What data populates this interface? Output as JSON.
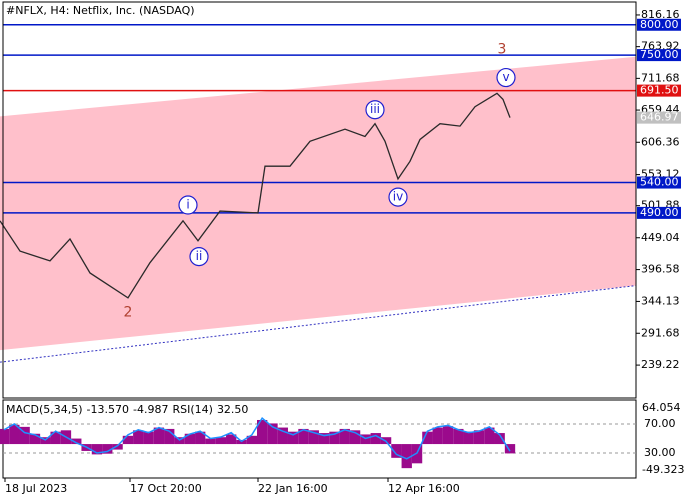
{
  "chart_data": {
    "type": "line",
    "title": "#NFLX, H4:  Netflix, Inc. (NASDAQ)",
    "x": [
      0,
      5,
      12.5,
      17.5,
      22.5,
      32,
      37.5,
      45.75,
      49.5,
      55,
      64.5,
      66.25,
      72.5,
      77.5,
      86.25,
      91.25,
      93.75,
      96.25,
      99.5,
      102.5,
      105,
      110,
      115,
      118.75,
      124.25,
      125.75,
      127.5
    ],
    "series": [
      {
        "name": "NFLX",
        "color": "#2a2a2a",
        "values": [
          476.9,
          427,
          411,
          447,
          391,
          350,
          408,
          477,
          444,
          493,
          490,
          567,
          567,
          608,
          628,
          616,
          637,
          608,
          546,
          575,
          611,
          637,
          633,
          665,
          687,
          677,
          646.97
        ]
      }
    ],
    "xlim": [
      0,
      159
    ],
    "xticks": [
      {
        "value": 1.25,
        "label": "18 Jul 2023"
      },
      {
        "value": 32.5,
        "label": "17 Oct 20:00"
      },
      {
        "value": 64.5,
        "label": "22 Jan 16:00"
      },
      {
        "value": 97,
        "label": "12 Apr 16:00"
      }
    ],
    "ylim": [
      185,
      837.5
    ],
    "yticks": [
      816.16,
      763.92,
      711.68,
      659.44,
      606.36,
      553.12,
      501.88,
      449.04,
      396.58,
      344.13,
      291.68,
      239.22
    ],
    "levels": [
      {
        "value": 800,
        "label": "800.00",
        "color": "#0018c8"
      },
      {
        "value": 750,
        "label": "750.00",
        "color": "#0018c8"
      },
      {
        "value": 691.5,
        "label": "691.50",
        "color": "#e01010"
      },
      {
        "value": 646.97,
        "label": "646.97",
        "color": "#c0c0c0"
      },
      {
        "value": 540,
        "label": "540.00",
        "color": "#0018c8"
      },
      {
        "value": 490,
        "label": "490.00",
        "color": "#0018c8"
      }
    ],
    "channel": {
      "x": [
        0,
        159
      ],
      "upper": [
        649,
        747.3
      ],
      "lower": [
        263.8,
        370.3
      ],
      "color": "#ffc0cb"
    },
    "waves": [
      {
        "label": "2",
        "x": 32,
        "y": 326,
        "circled": false
      },
      {
        "label": "i",
        "x": 47,
        "y": 503,
        "circled": true
      },
      {
        "label": "ii",
        "x": 49.75,
        "y": 418,
        "circled": true
      },
      {
        "label": "iii",
        "x": 93.75,
        "y": 660,
        "circled": true
      },
      {
        "label": "iv",
        "x": 99.5,
        "y": 516,
        "circled": true
      },
      {
        "label": "3",
        "x": 125.5,
        "y": 759,
        "circled": false
      },
      {
        "label": "v",
        "x": 126.5,
        "y": 713,
        "circled": true
      }
    ],
    "indicator": {
      "macd_name": "MACD(5,34,5)",
      "macd_value": {
        "value": -13.57,
        "label": "-13.570"
      },
      "signal_value": -4.987,
      "rsi_name": "RSI(14)",
      "rsi_value": {
        "value": 32.5,
        "label": "32.50"
      },
      "xlim": [
        1,
        127.5
      ],
      "macd_ylim": [
        -49.323,
        64.054
      ],
      "macd_yticks": [
        64.054,
        -49.323
      ],
      "rsi_ylim": [
        -4.5,
        103
      ],
      "rsi_yticks": [
        {
          "value": 70,
          "label": "70.00"
        },
        {
          "value": 30,
          "label": "30.00"
        }
      ],
      "histogram": {
        "color": "#9b0a8c",
        "values": [
          22,
          28,
          25,
          15,
          10,
          18,
          20,
          8,
          -10,
          -15,
          -14,
          -8,
          12,
          20,
          18,
          24,
          22,
          10,
          15,
          18,
          8,
          10,
          14,
          6,
          12,
          35,
          30,
          24,
          18,
          22,
          20,
          16,
          18,
          22,
          20,
          14,
          16,
          10,
          -20,
          -35,
          -28,
          18,
          24,
          26,
          22,
          18,
          20,
          24,
          16,
          -13.57
        ]
      },
      "rsi": {
        "color": "#1e90ff",
        "values": [
          62,
          70,
          58,
          55,
          48,
          60,
          52,
          44,
          38,
          30,
          32,
          40,
          55,
          62,
          58,
          65,
          60,
          48,
          56,
          60,
          50,
          52,
          58,
          46,
          55,
          78,
          66,
          60,
          55,
          62,
          58,
          54,
          56,
          62,
          58,
          50,
          54,
          46,
          28,
          22,
          30,
          60,
          66,
          68,
          62,
          58,
          60,
          66,
          55,
          32.5
        ]
      }
    }
  }
}
